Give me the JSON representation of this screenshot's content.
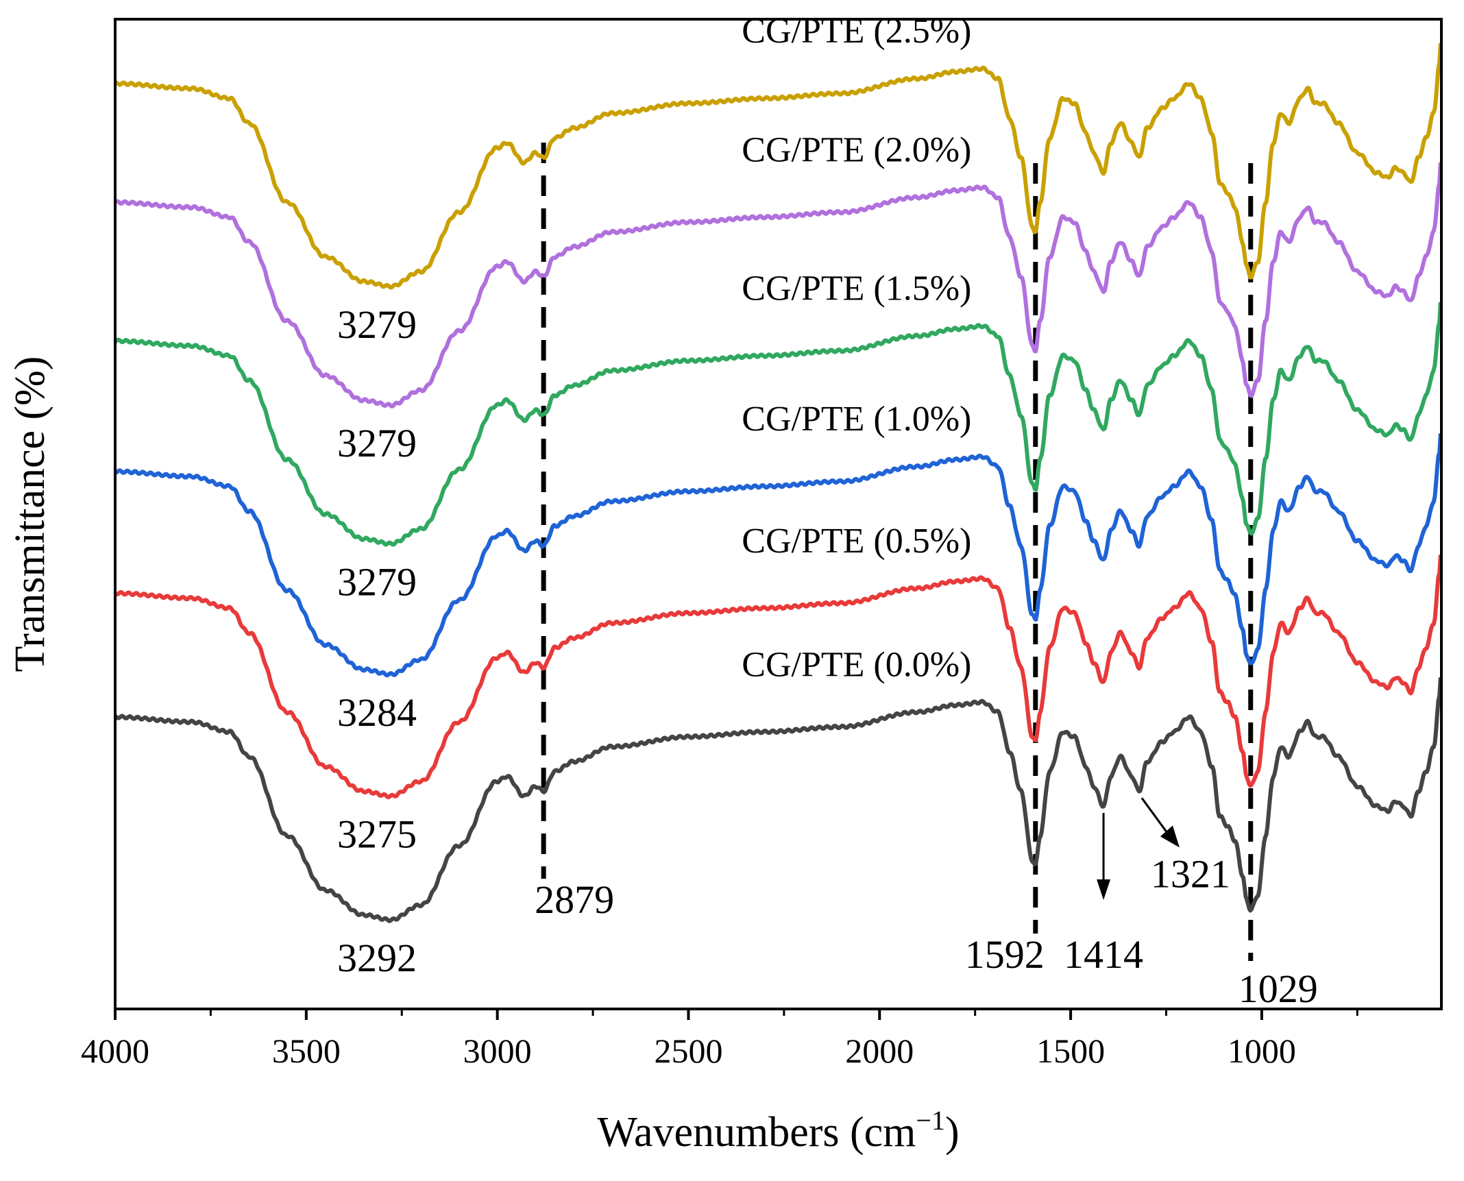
{
  "chart_data": {
    "type": "line",
    "title": "",
    "xlabel": "Wavenumbers (cm",
    "xlabel_sup": "−1",
    "xlabel_end": ")",
    "ylabel": "Transmittance (%)",
    "xlim": [
      4000,
      530
    ],
    "x_inverted": true,
    "xticks": [
      4000,
      3500,
      3000,
      2500,
      2000,
      1500,
      1000
    ],
    "xtick_labels": [
      "4000",
      "3500",
      "3000",
      "2500",
      "2000",
      "1500",
      "1000"
    ],
    "y_ticks_shown": false,
    "series": [
      {
        "name": "CG/PTE (2.5%)",
        "color": "#C9A000",
        "baseline": 0.935,
        "scale": 1.0,
        "peak_labels": [
          "3279"
        ]
      },
      {
        "name": "CG/PTE (2.0%)",
        "color": "#B070DD",
        "baseline": 0.815,
        "scale": 1.0,
        "peak_labels": [
          "3279"
        ]
      },
      {
        "name": "CG/PTE (1.5%)",
        "color": "#30A860",
        "baseline": 0.675,
        "scale": 1.0,
        "peak_labels": [
          "3279"
        ]
      },
      {
        "name": "CG/PTE (1.0%)",
        "color": "#1F63D6",
        "baseline": 0.543,
        "scale": 1.0,
        "peak_labels": [
          "3284"
        ]
      },
      {
        "name": "CG/PTE (0.5%)",
        "color": "#E83A3A",
        "baseline": 0.42,
        "scale": 1.0,
        "peak_labels": [
          "3275"
        ]
      },
      {
        "name": "CG/PTE (0.0%)",
        "color": "#444444",
        "baseline": 0.295,
        "scale": 1.0,
        "peak_labels": [
          "3292"
        ]
      }
    ],
    "reference_lines": [
      {
        "x": 2879,
        "label": "2879",
        "style": "dashed"
      },
      {
        "x": 1592,
        "label": "1592",
        "style": "dashed"
      },
      {
        "x": 1029,
        "label": "1029",
        "style": "dashed"
      }
    ],
    "annotations": [
      {
        "x": 1414,
        "label": "1414",
        "arrow": "down"
      },
      {
        "x": 1321,
        "label": "1321",
        "arrow": "down-right"
      }
    ],
    "spectrum_shape": [
      [
        4000,
        0.0
      ],
      [
        3800,
        -0.005
      ],
      [
        3700,
        -0.015
      ],
      [
        3650,
        -0.04
      ],
      [
        3550,
        -0.12
      ],
      [
        3450,
        -0.175
      ],
      [
        3350,
        -0.2
      ],
      [
        3279,
        -0.205
      ],
      [
        3200,
        -0.19
      ],
      [
        3100,
        -0.13
      ],
      [
        3000,
        -0.065
      ],
      [
        2975,
        -0.06
      ],
      [
        2930,
        -0.08
      ],
      [
        2900,
        -0.07
      ],
      [
        2879,
        -0.075
      ],
      [
        2850,
        -0.055
      ],
      [
        2800,
        -0.045
      ],
      [
        2700,
        -0.03
      ],
      [
        2500,
        -0.02
      ],
      [
        2300,
        -0.015
      ],
      [
        2100,
        -0.01
      ],
      [
        1900,
        0.005
      ],
      [
        1800,
        0.012
      ],
      [
        1730,
        0.015
      ],
      [
        1690,
        0.005
      ],
      [
        1660,
        -0.035
      ],
      [
        1630,
        -0.075
      ],
      [
        1600,
        -0.145
      ],
      [
        1592,
        -0.15
      ],
      [
        1580,
        -0.12
      ],
      [
        1555,
        -0.055
      ],
      [
        1520,
        -0.015
      ],
      [
        1490,
        -0.02
      ],
      [
        1460,
        -0.05
      ],
      [
        1440,
        -0.07
      ],
      [
        1414,
        -0.09
      ],
      [
        1395,
        -0.06
      ],
      [
        1370,
        -0.04
      ],
      [
        1340,
        -0.06
      ],
      [
        1321,
        -0.075
      ],
      [
        1300,
        -0.045
      ],
      [
        1260,
        -0.025
      ],
      [
        1230,
        -0.015
      ],
      [
        1190,
        0.0
      ],
      [
        1160,
        -0.015
      ],
      [
        1130,
        -0.05
      ],
      [
        1110,
        -0.1
      ],
      [
        1090,
        -0.11
      ],
      [
        1070,
        -0.125
      ],
      [
        1050,
        -0.16
      ],
      [
        1040,
        -0.185
      ],
      [
        1029,
        -0.195
      ],
      [
        1010,
        -0.18
      ],
      [
        990,
        -0.12
      ],
      [
        970,
        -0.06
      ],
      [
        950,
        -0.03
      ],
      [
        930,
        -0.04
      ],
      [
        900,
        -0.015
      ],
      [
        880,
        -0.005
      ],
      [
        860,
        -0.02
      ],
      [
        840,
        -0.02
      ],
      [
        800,
        -0.04
      ],
      [
        750,
        -0.07
      ],
      [
        700,
        -0.09
      ],
      [
        670,
        -0.095
      ],
      [
        650,
        -0.085
      ],
      [
        630,
        -0.09
      ],
      [
        610,
        -0.1
      ],
      [
        590,
        -0.075
      ],
      [
        570,
        -0.055
      ],
      [
        550,
        -0.03
      ],
      [
        535,
        0.02
      ],
      [
        530,
        0.05
      ]
    ]
  }
}
